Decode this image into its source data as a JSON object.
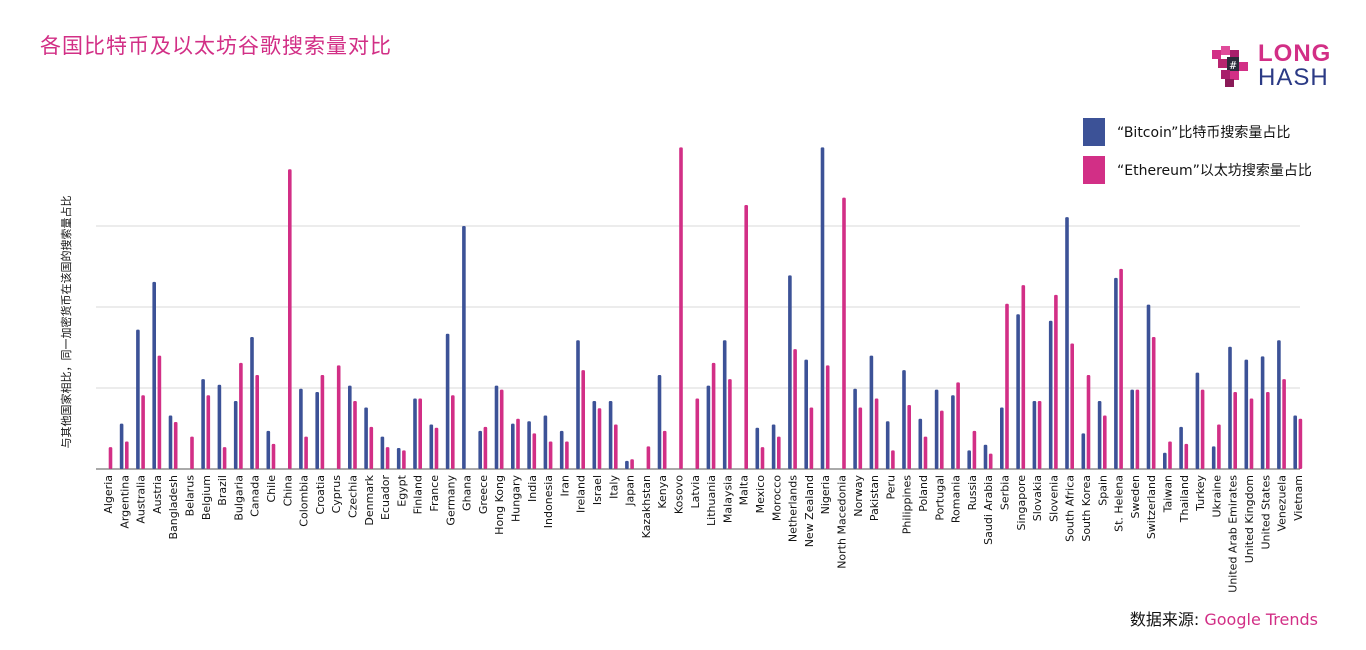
{
  "title": "各国比特币及以太坊谷歌搜索量对比",
  "logo": {
    "top": "LONG",
    "bottom": "HASH"
  },
  "source": {
    "label": "数据来源: ",
    "value": "Google Trends"
  },
  "colors": {
    "bitcoin": "#3c5297",
    "ethereum": "#d22f86",
    "grid": "#d9d9d9",
    "axis": "#555555"
  },
  "chart_data": {
    "type": "bar",
    "title": "各国比特币及以太坊谷歌搜索量对比",
    "ylabel": "与其他国家相比，同一加密货币在该国的搜索量占比",
    "xlabel": "",
    "ylim": [
      0,
      4
    ],
    "grid": "horizontal",
    "legend_position": "top-right",
    "categories": [
      "Algeria",
      "Argentina",
      "Australia",
      "Austria",
      "Bangladesh",
      "Belarus",
      "Belgium",
      "Brazil",
      "Bulgaria",
      "Canada",
      "Chile",
      "China",
      "Colombia",
      "Croatia",
      "Cyprus",
      "Czechia",
      "Denmark",
      "Ecuador",
      "Egypt",
      "Finland",
      "France",
      "Germany",
      "Ghana",
      "Greece",
      "Hong Kong",
      "Hungary",
      "India",
      "Indonesia",
      "Iran",
      "Ireland",
      "Israel",
      "Italy",
      "Japan",
      "Kazakhstan",
      "Kenya",
      "Kosovo",
      "Latvia",
      "Lithuania",
      "Malaysia",
      "Malta",
      "Mexico",
      "Morocco",
      "Netherlands",
      "New Zealand",
      "Nigeria",
      "North Macedonia",
      "Norway",
      "Pakistan",
      "Peru",
      "Philippines",
      "Poland",
      "Portugal",
      "Romania",
      "Russia",
      "Saudi Arabia",
      "Serbia",
      "Singapore",
      "Slovakia",
      "Slovenia",
      "South Africa",
      "South Korea",
      "Spain",
      "St. Helena",
      "Sweden",
      "Switzerland",
      "Taiwan",
      "Thailand",
      "Turkey",
      "Ukraine",
      "United Arab Emirates",
      "United Kingdom",
      "United States",
      "Venezuela",
      "Vietnam"
    ],
    "series": [
      {
        "name": "“Bitcoin”比特币搜索量占比",
        "values": [
          0,
          0.56,
          1.72,
          2.31,
          0.66,
          0,
          1.11,
          1.04,
          0.84,
          1.63,
          0.47,
          0,
          0.99,
          0.95,
          0,
          1.03,
          0.76,
          0.4,
          0.26,
          0.87,
          0.55,
          1.67,
          3.0,
          0.47,
          1.03,
          0.56,
          0.59,
          0.66,
          0.47,
          1.59,
          0.84,
          0.84,
          0.1,
          0,
          1.16,
          0,
          0,
          1.03,
          1.59,
          0,
          0.51,
          0.55,
          2.39,
          1.35,
          3.97,
          0,
          0.99,
          1.4,
          0.59,
          1.22,
          0.62,
          0.98,
          0.91,
          0.23,
          0.3,
          0.76,
          1.91,
          0.84,
          1.83,
          3.11,
          0.44,
          0.84,
          2.36,
          0.98,
          2.03,
          0.2,
          0.52,
          1.19,
          0.28,
          1.51,
          1.35,
          1.39,
          1.59,
          0.66
        ]
      },
      {
        "name": "“Ethereum”以太坊搜索量占比",
        "values": [
          0.27,
          0.34,
          0.91,
          1.4,
          0.58,
          0.4,
          0.91,
          0.27,
          1.31,
          1.16,
          0.31,
          3.7,
          0.4,
          1.16,
          1.28,
          0.84,
          0.52,
          0.27,
          0.23,
          0.87,
          0.51,
          0.91,
          0,
          0.52,
          0.98,
          0.62,
          0.44,
          0.34,
          0.34,
          1.22,
          0.75,
          0.55,
          0.12,
          0.28,
          0.47,
          3.97,
          0.87,
          1.31,
          1.11,
          3.26,
          0.27,
          0.4,
          1.48,
          0.76,
          1.28,
          3.35,
          0.76,
          0.87,
          0.23,
          0.79,
          0.4,
          0.72,
          1.07,
          0.47,
          0.19,
          2.04,
          2.27,
          0.84,
          2.15,
          1.55,
          1.16,
          0.66,
          2.47,
          0.98,
          1.63,
          0.34,
          0.31,
          0.98,
          0.55,
          0.95,
          0.87,
          0.95,
          1.11,
          0.62
        ]
      }
    ]
  }
}
